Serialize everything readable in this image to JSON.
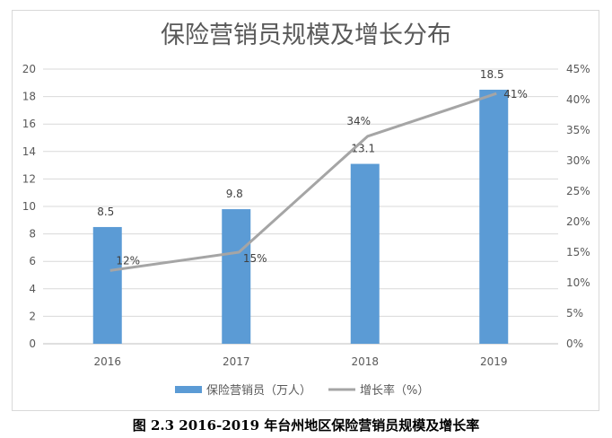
{
  "caption": "图 2.3 2016-2019 年台州地区保险营销员规模及增长率",
  "chart_data": {
    "type": "bar",
    "title": "保险营销员规模及增长分布",
    "categories": [
      "2016",
      "2017",
      "2018",
      "2019"
    ],
    "series": [
      {
        "name": "保险营销员（万人）",
        "kind": "bar",
        "axis": "left",
        "values": [
          8.5,
          9.8,
          13.1,
          18.5
        ],
        "labels": [
          "8.5",
          "9.8",
          "13.1",
          "18.5"
        ],
        "color": "#5b9bd5"
      },
      {
        "name": "增长率（%）",
        "kind": "line",
        "axis": "right",
        "values": [
          12,
          15,
          34,
          41
        ],
        "labels": [
          "12%",
          "15%",
          "34%",
          "41%"
        ],
        "color": "#a5a5a5"
      }
    ],
    "y_left": {
      "min": 0,
      "max": 20,
      "ticks": [
        "0",
        "2",
        "4",
        "6",
        "8",
        "10",
        "12",
        "14",
        "16",
        "18",
        "20"
      ]
    },
    "y_right": {
      "min": 0,
      "max": 45,
      "ticks": [
        "0%",
        "5%",
        "10%",
        "15%",
        "20%",
        "25%",
        "30%",
        "35%",
        "40%",
        "45%"
      ]
    },
    "grid": true,
    "legend_position": "bottom"
  }
}
